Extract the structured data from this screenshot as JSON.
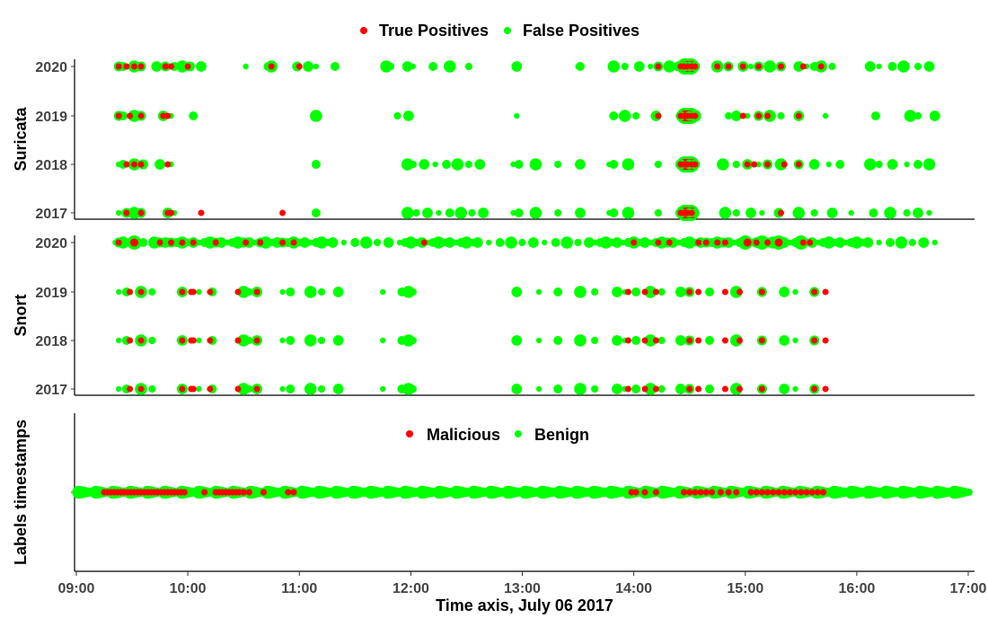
{
  "chart_data": {
    "type": "scatter",
    "xlabel": "Time axis, July 06 2017",
    "x_ticks": [
      "09:00",
      "10:00",
      "11:00",
      "12:00",
      "13:00",
      "14:00",
      "15:00",
      "16:00",
      "17:00"
    ],
    "xlim_hours": [
      9.0,
      17.0
    ],
    "colors": {
      "red": "#ff0000",
      "green": "#00ff00"
    },
    "legends": {
      "detections": [
        {
          "label": "True Positives",
          "color": "#ff0000"
        },
        {
          "label": "False Positives",
          "color": "#00ff00"
        }
      ],
      "labels": [
        {
          "label": "Malicious",
          "color": "#ff0000"
        },
        {
          "label": "Benign",
          "color": "#00ff00"
        }
      ]
    },
    "panels": [
      {
        "ylabel": "Suricata",
        "years": [
          "2017",
          "2018",
          "2019",
          "2020"
        ],
        "rows": {
          "2020": {
            "tp": [
              9.38,
              9.45,
              9.52,
              9.58,
              9.8,
              9.85,
              10.0,
              10.75,
              11.0,
              14.22,
              14.42,
              14.45,
              14.48,
              14.52,
              14.55,
              14.75,
              14.85,
              14.98,
              15.12,
              15.32,
              15.52,
              15.68
            ],
            "fp": [
              9.38,
              9.42,
              9.52,
              9.58,
              9.72,
              9.8,
              9.88,
              9.95,
              10.02,
              10.12,
              10.52,
              10.72,
              10.75,
              10.98,
              11.08,
              11.15,
              11.32,
              11.78,
              11.82,
              11.97,
              12.02,
              12.2,
              12.35,
              12.52,
              12.95,
              13.5,
              13.52,
              13.82,
              13.92,
              14.05,
              14.15,
              14.22,
              14.32,
              14.4,
              14.45,
              14.5,
              14.55,
              14.75,
              14.85,
              14.98,
              15.05,
              15.12,
              15.22,
              15.32,
              15.48,
              15.55,
              15.62,
              15.68,
              15.78,
              16.12,
              16.2,
              16.32,
              16.42,
              16.55,
              16.65
            ]
          },
          "2019": {
            "tp": [
              9.38,
              9.48,
              9.58,
              9.78,
              9.82,
              14.22,
              14.42,
              14.45,
              14.48,
              14.52,
              14.55,
              14.98,
              15.12,
              15.2,
              15.48
            ],
            "fp": [
              9.38,
              9.42,
              9.52,
              9.58,
              9.78,
              9.85,
              10.05,
              11.15,
              11.88,
              11.98,
              12.95,
              13.82,
              13.92,
              14.02,
              14.2,
              14.42,
              14.5,
              14.55,
              14.85,
              14.92,
              15.02,
              15.12,
              15.22,
              15.32,
              15.48,
              15.72,
              16.17,
              16.48,
              16.55,
              16.7
            ]
          },
          "2018": {
            "tp": [
              9.45,
              9.52,
              9.58,
              9.82,
              14.42,
              14.45,
              14.48,
              14.52,
              14.55,
              15.02,
              15.08,
              15.2,
              15.35,
              15.48
            ],
            "fp": [
              9.38,
              9.42,
              9.52,
              9.6,
              9.75,
              9.85,
              11.15,
              11.97,
              12.02,
              12.12,
              12.22,
              12.32,
              12.42,
              12.52,
              12.62,
              12.92,
              12.97,
              13.12,
              13.32,
              13.52,
              13.78,
              13.82,
              13.95,
              14.22,
              14.42,
              14.5,
              14.55,
              14.8,
              14.92,
              15.02,
              15.12,
              15.2,
              15.32,
              15.48,
              15.62,
              15.75,
              15.85,
              16.12,
              16.2,
              16.32,
              16.45,
              16.55,
              16.65
            ]
          },
          "2017": {
            "tp": [
              9.45,
              9.58,
              9.82,
              9.85,
              10.12,
              10.85,
              14.42,
              14.45,
              14.48,
              14.52,
              15.32
            ],
            "fp": [
              9.38,
              9.45,
              9.52,
              9.58,
              9.82,
              9.88,
              11.15,
              11.97,
              12.05,
              12.15,
              12.25,
              12.35,
              12.45,
              12.55,
              12.65,
              12.92,
              12.97,
              13.12,
              13.32,
              13.52,
              13.78,
              13.82,
              13.95,
              14.22,
              14.42,
              14.5,
              14.55,
              14.82,
              14.92,
              15.05,
              15.15,
              15.3,
              15.48,
              15.62,
              15.78,
              15.95,
              16.15,
              16.3,
              16.45,
              16.55,
              16.65
            ]
          }
        }
      },
      {
        "ylabel": "Snort",
        "years": [
          "2017",
          "2018",
          "2019",
          "2020"
        ],
        "rows": {
          "2020": {
            "tp": [
              9.38,
              9.52,
              9.75,
              9.85,
              9.95,
              10.05,
              10.25,
              10.52,
              10.65,
              10.85,
              10.95,
              12.12,
              14.0,
              14.22,
              14.32,
              14.58,
              14.65,
              14.75,
              14.82,
              15.02,
              15.1,
              15.2,
              15.3,
              15.52,
              15.58
            ],
            "fp": [
              9.35,
              9.38,
              9.42,
              9.48,
              9.52,
              9.55,
              9.6,
              9.7,
              9.75,
              9.8,
              9.85,
              9.9,
              9.95,
              10.0,
              10.05,
              10.1,
              10.15,
              10.2,
              10.25,
              10.3,
              10.35,
              10.4,
              10.45,
              10.5,
              10.55,
              10.6,
              10.65,
              10.7,
              10.75,
              10.8,
              10.85,
              10.9,
              10.95,
              11.0,
              11.05,
              11.1,
              11.15,
              11.2,
              11.25,
              11.3,
              11.4,
              11.5,
              11.6,
              11.7,
              11.8,
              11.9,
              11.95,
              12.0,
              12.05,
              12.1,
              12.15,
              12.2,
              12.25,
              12.3,
              12.35,
              12.4,
              12.45,
              12.5,
              12.55,
              12.6,
              12.7,
              12.8,
              12.9,
              13.0,
              13.1,
              13.2,
              13.3,
              13.4,
              13.5,
              13.6,
              13.65,
              13.7,
              13.75,
              13.8,
              13.85,
              13.9,
              13.95,
              14.0,
              14.05,
              14.1,
              14.15,
              14.2,
              14.25,
              14.3,
              14.35,
              14.4,
              14.45,
              14.5,
              14.55,
              14.6,
              14.65,
              14.7,
              14.75,
              14.8,
              14.85,
              14.9,
              14.95,
              15.0,
              15.05,
              15.1,
              15.15,
              15.2,
              15.25,
              15.3,
              15.35,
              15.4,
              15.45,
              15.5,
              15.55,
              15.6,
              15.65,
              15.7,
              15.75,
              15.8,
              15.85,
              15.9,
              15.95,
              16.0,
              16.05,
              16.1,
              16.2,
              16.3,
              16.4,
              16.5,
              16.6,
              16.7
            ],
            "big": [
              9.52,
              15.02,
              15.17,
              15.32,
              15.48
            ]
          },
          "2019": {
            "tp": [
              9.48,
              9.58,
              9.95,
              10.03,
              10.05,
              10.2,
              10.45,
              10.62,
              13.95,
              14.1,
              14.2,
              14.5,
              14.58,
              14.82,
              14.95,
              15.15,
              15.62,
              15.72
            ],
            "fp": [
              9.38,
              9.45,
              9.58,
              9.68,
              9.95,
              10.1,
              10.22,
              10.5,
              10.55,
              10.62,
              10.85,
              10.92,
              11.1,
              11.2,
              11.35,
              11.75,
              11.92,
              11.98,
              12.02,
              12.95,
              13.15,
              13.32,
              13.52,
              13.65,
              13.85,
              13.92,
              14.02,
              14.15,
              14.25,
              14.42,
              14.5,
              14.68,
              14.92,
              15.15,
              15.35,
              15.45,
              15.62
            ]
          },
          "2018": {
            "tp": [
              9.48,
              9.58,
              9.95,
              10.03,
              10.05,
              10.2,
              10.45,
              10.62,
              13.95,
              14.1,
              14.2,
              14.5,
              14.58,
              14.82,
              14.95,
              15.15,
              15.62,
              15.72
            ],
            "fp": [
              9.38,
              9.45,
              9.58,
              9.68,
              9.95,
              10.1,
              10.22,
              10.5,
              10.55,
              10.62,
              10.85,
              10.92,
              11.1,
              11.2,
              11.35,
              11.75,
              11.92,
              11.98,
              12.02,
              12.95,
              13.15,
              13.32,
              13.52,
              13.65,
              13.85,
              13.92,
              14.02,
              14.15,
              14.25,
              14.42,
              14.5,
              14.68,
              14.92,
              15.15,
              15.35,
              15.45,
              15.62
            ]
          },
          "2017": {
            "tp": [
              9.48,
              9.58,
              9.95,
              10.03,
              10.05,
              10.2,
              10.45,
              10.62,
              13.95,
              14.1,
              14.2,
              14.5,
              14.58,
              14.82,
              14.95,
              15.15,
              15.62,
              15.72
            ],
            "fp": [
              9.38,
              9.45,
              9.58,
              9.68,
              9.95,
              10.1,
              10.22,
              10.5,
              10.55,
              10.62,
              10.85,
              10.92,
              11.1,
              11.2,
              11.35,
              11.75,
              11.92,
              11.98,
              12.02,
              12.95,
              13.15,
              13.32,
              13.52,
              13.65,
              13.85,
              13.92,
              14.02,
              14.15,
              14.25,
              14.42,
              14.5,
              14.68,
              14.92,
              15.15,
              15.35,
              15.45,
              15.62
            ]
          }
        }
      },
      {
        "ylabel": "Labels timestamps",
        "malicious": [
          9.25,
          9.28,
          9.31,
          9.34,
          9.37,
          9.4,
          9.43,
          9.46,
          9.49,
          9.52,
          9.55,
          9.58,
          9.61,
          9.64,
          9.67,
          9.7,
          9.73,
          9.76,
          9.79,
          9.82,
          9.85,
          9.88,
          9.91,
          9.94,
          9.97,
          10.15,
          10.25,
          10.28,
          10.31,
          10.34,
          10.37,
          10.4,
          10.43,
          10.46,
          10.5,
          10.55,
          10.68,
          10.9,
          10.95,
          13.98,
          14.02,
          14.1,
          14.2,
          14.45,
          14.5,
          14.55,
          14.6,
          14.65,
          14.7,
          14.78,
          14.85,
          14.92,
          15.05,
          15.1,
          15.15,
          15.2,
          15.25,
          15.3,
          15.35,
          15.4,
          15.45,
          15.5,
          15.55,
          15.6,
          15.65,
          15.7
        ]
      }
    ]
  }
}
